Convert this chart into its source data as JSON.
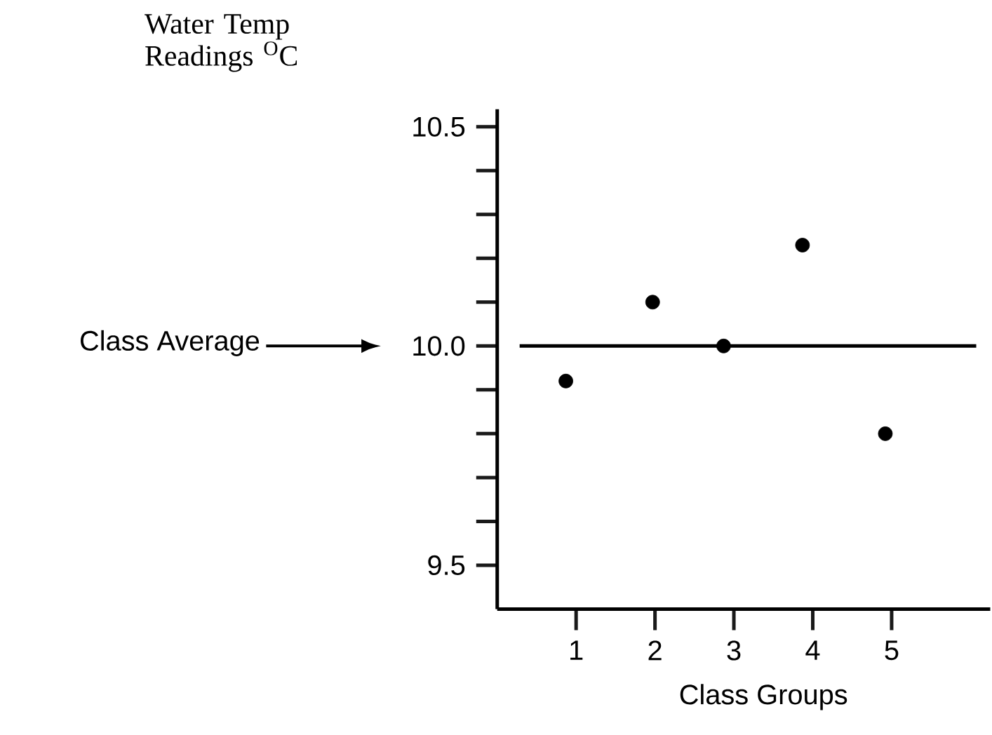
{
  "chart_data": {
    "type": "scatter",
    "ylabel": "Water Temp Readings $^{O}$C",
    "xlabel": "Class Groups",
    "x": [
      0.87,
      1.97,
      2.87,
      3.87,
      4.92
    ],
    "values": [
      9.92,
      10.1,
      10.0,
      10.23,
      9.8
    ],
    "color": "#000000",
    "marker": "circle",
    "grid": false,
    "xlim": [
      0,
      6.25
    ],
    "xticks": [
      1,
      2,
      3,
      4,
      5
    ],
    "ylim": [
      9.4,
      10.54
    ],
    "yticks": [
      9.5,
      {
        "value": 9.6,
        "label": null
      },
      {
        "value": 9.7,
        "label": null
      },
      {
        "value": 9.8,
        "label": null
      },
      {
        "value": 9.9,
        "label": null
      },
      {
        "value": 10,
        "label": "10.0"
      },
      {
        "value": 10.1,
        "label": null
      },
      {
        "value": 10.2,
        "label": null
      },
      {
        "value": 10.3,
        "label": null
      },
      {
        "value": 10.4,
        "label": null
      },
      10.5
    ],
    "ref_lines": [
      {
        "axis": "y",
        "value": 10,
        "label": "Class Average"
      }
    ]
  }
}
